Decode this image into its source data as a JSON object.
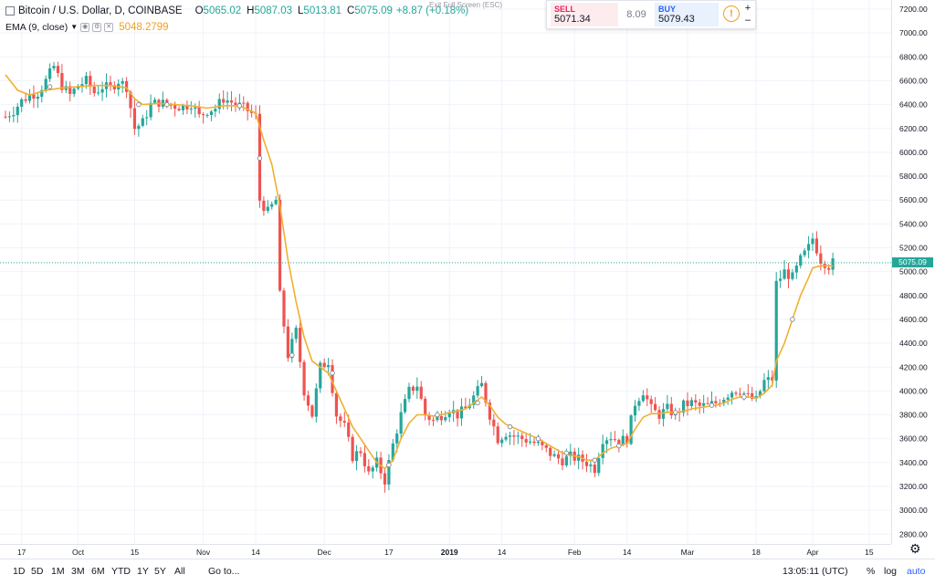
{
  "legend": {
    "symbol": "Bitcoin / U.S. Dollar, D, COINBASE",
    "open_label": "O",
    "open": "5065.02",
    "high_label": "H",
    "high": "5087.03",
    "low_label": "L",
    "low": "5013.81",
    "close_label": "C",
    "close": "5075.09",
    "change": "+8.87 (+0.18%)",
    "ema_label": "EMA (9, close)",
    "ema_value": "5048.2799"
  },
  "exit_fullscreen": "Exit Full Screen (ESC)",
  "trade": {
    "sell_label": "SELL",
    "sell_price": "5071.34",
    "spread": "8.09",
    "buy_label": "BUY",
    "buy_price": "5079.43",
    "info_icon": "!",
    "plus": "+",
    "minus": "–"
  },
  "last_price_tag": "5075.09",
  "bottom": {
    "ranges": [
      "1D",
      "5D",
      "1M",
      "3M",
      "6M",
      "YTD",
      "1Y",
      "5Y",
      "All"
    ],
    "goto": "Go to...",
    "time": "13:05:11 (UTC)",
    "percent": "%",
    "log": "log",
    "auto": "auto"
  },
  "colors": {
    "up": "#26a69a",
    "down": "#ef5350",
    "ema": "#f0b030",
    "last_price": "#26a69a"
  },
  "chart_data": {
    "type": "candlestick",
    "y_axis_ticks": [
      2800,
      3000,
      3200,
      3400,
      3600,
      3800,
      4000,
      4200,
      4400,
      4600,
      4800,
      5000,
      5200,
      5400,
      5600,
      5800,
      6000,
      6200,
      6400,
      6600,
      6800,
      7000,
      7200
    ],
    "y_tick_labels": [
      "2800.00",
      "3000.00",
      "3200.00",
      "3400.00",
      "3600.00",
      "3800.00",
      "4000.00",
      "4200.00",
      "4400.00",
      "4600.00",
      "4800.00",
      "5000.00",
      "5200.00",
      "5400.00",
      "5600.00",
      "5800.00",
      "6000.00",
      "6200.00",
      "6400.00",
      "6600.00",
      "6800.00",
      "7000.00",
      "7200.00"
    ],
    "ylim": [
      2730,
      7270
    ],
    "x_ticks": [
      {
        "label": "17",
        "day": 4
      },
      {
        "label": "Oct",
        "day": 18
      },
      {
        "label": "15",
        "day": 32
      },
      {
        "label": "Nov",
        "day": 49
      },
      {
        "label": "14",
        "day": 62
      },
      {
        "label": "Dec",
        "day": 79
      },
      {
        "label": "17",
        "day": 95
      },
      {
        "label": "2019",
        "day": 110,
        "bold": true
      },
      {
        "label": "14",
        "day": 123
      },
      {
        "label": "Feb",
        "day": 141
      },
      {
        "label": "14",
        "day": 154
      },
      {
        "label": "Mar",
        "day": 169
      },
      {
        "label": "18",
        "day": 186
      },
      {
        "label": "Apr",
        "day": 200
      },
      {
        "label": "15",
        "day": 214
      }
    ],
    "close_path": [
      [
        0,
        6300
      ],
      [
        2,
        6350
      ],
      [
        4,
        6430
      ],
      [
        6,
        6480
      ],
      [
        8,
        6500
      ],
      [
        10,
        6600
      ],
      [
        12,
        6720
      ],
      [
        14,
        6560
      ],
      [
        16,
        6480
      ],
      [
        18,
        6560
      ],
      [
        20,
        6600
      ],
      [
        22,
        6500
      ],
      [
        24,
        6550
      ],
      [
        26,
        6540
      ],
      [
        28,
        6600
      ],
      [
        30,
        6550
      ],
      [
        32,
        6200
      ],
      [
        34,
        6250
      ],
      [
        36,
        6400
      ],
      [
        38,
        6420
      ],
      [
        40,
        6400
      ],
      [
        42,
        6390
      ],
      [
        44,
        6380
      ],
      [
        46,
        6410
      ],
      [
        48,
        6300
      ],
      [
        50,
        6350
      ],
      [
        52,
        6370
      ],
      [
        54,
        6450
      ],
      [
        56,
        6420
      ],
      [
        58,
        6390
      ],
      [
        60,
        6350
      ],
      [
        62,
        6300
      ],
      [
        63,
        5600
      ],
      [
        65,
        5500
      ],
      [
        67,
        5600
      ],
      [
        68,
        4800
      ],
      [
        70,
        4300
      ],
      [
        72,
        4500
      ],
      [
        74,
        4000
      ],
      [
        76,
        3800
      ],
      [
        78,
        4200
      ],
      [
        80,
        4250
      ],
      [
        82,
        3800
      ],
      [
        84,
        3700
      ],
      [
        86,
        3450
      ],
      [
        88,
        3500
      ],
      [
        90,
        3300
      ],
      [
        92,
        3400
      ],
      [
        94,
        3250
      ],
      [
        96,
        3550
      ],
      [
        98,
        3800
      ],
      [
        100,
        4000
      ],
      [
        102,
        4050
      ],
      [
        104,
        3800
      ],
      [
        106,
        3750
      ],
      [
        108,
        3800
      ],
      [
        110,
        3850
      ],
      [
        112,
        3800
      ],
      [
        114,
        3850
      ],
      [
        116,
        3950
      ],
      [
        118,
        4050
      ],
      [
        120,
        3800
      ],
      [
        122,
        3600
      ],
      [
        124,
        3650
      ],
      [
        126,
        3620
      ],
      [
        128,
        3600
      ],
      [
        130,
        3580
      ],
      [
        132,
        3550
      ],
      [
        134,
        3500
      ],
      [
        136,
        3450
      ],
      [
        138,
        3420
      ],
      [
        140,
        3450
      ],
      [
        142,
        3430
      ],
      [
        144,
        3400
      ],
      [
        146,
        3350
      ],
      [
        148,
        3600
      ],
      [
        150,
        3620
      ],
      [
        152,
        3580
      ],
      [
        154,
        3600
      ],
      [
        156,
        3900
      ],
      [
        158,
        4000
      ],
      [
        160,
        3850
      ],
      [
        162,
        3800
      ],
      [
        164,
        3850
      ],
      [
        166,
        3800
      ],
      [
        168,
        3880
      ],
      [
        170,
        3900
      ],
      [
        172,
        3870
      ],
      [
        174,
        3880
      ],
      [
        176,
        3900
      ],
      [
        178,
        3950
      ],
      [
        180,
        4000
      ],
      [
        182,
        4010
      ],
      [
        184,
        3950
      ],
      [
        186,
        3920
      ],
      [
        188,
        4080
      ],
      [
        190,
        4100
      ],
      [
        191,
        4900
      ],
      [
        193,
        5000
      ],
      [
        195,
        4950
      ],
      [
        197,
        5100
      ],
      [
        199,
        5200
      ],
      [
        200,
        5280
      ],
      [
        202,
        5100
      ],
      [
        204,
        5050
      ],
      [
        205,
        5075
      ]
    ],
    "ema_path": [
      [
        0,
        6650
      ],
      [
        3,
        6520
      ],
      [
        6,
        6480
      ],
      [
        10,
        6520
      ],
      [
        14,
        6540
      ],
      [
        18,
        6550
      ],
      [
        22,
        6560
      ],
      [
        26,
        6560
      ],
      [
        30,
        6540
      ],
      [
        32,
        6450
      ],
      [
        34,
        6400
      ],
      [
        38,
        6410
      ],
      [
        42,
        6400
      ],
      [
        46,
        6390
      ],
      [
        50,
        6370
      ],
      [
        54,
        6390
      ],
      [
        58,
        6390
      ],
      [
        62,
        6330
      ],
      [
        64,
        6100
      ],
      [
        66,
        5900
      ],
      [
        68,
        5550
      ],
      [
        70,
        5100
      ],
      [
        72,
        4750
      ],
      [
        74,
        4450
      ],
      [
        76,
        4250
      ],
      [
        78,
        4200
      ],
      [
        80,
        4150
      ],
      [
        82,
        4000
      ],
      [
        84,
        3850
      ],
      [
        86,
        3700
      ],
      [
        88,
        3600
      ],
      [
        90,
        3500
      ],
      [
        92,
        3400
      ],
      [
        94,
        3350
      ],
      [
        96,
        3420
      ],
      [
        98,
        3600
      ],
      [
        100,
        3730
      ],
      [
        102,
        3800
      ],
      [
        104,
        3800
      ],
      [
        106,
        3790
      ],
      [
        108,
        3800
      ],
      [
        110,
        3820
      ],
      [
        112,
        3830
      ],
      [
        114,
        3850
      ],
      [
        116,
        3900
      ],
      [
        118,
        3950
      ],
      [
        120,
        3880
      ],
      [
        122,
        3780
      ],
      [
        124,
        3720
      ],
      [
        126,
        3690
      ],
      [
        128,
        3660
      ],
      [
        130,
        3630
      ],
      [
        132,
        3600
      ],
      [
        134,
        3560
      ],
      [
        136,
        3520
      ],
      [
        138,
        3480
      ],
      [
        140,
        3460
      ],
      [
        142,
        3450
      ],
      [
        144,
        3420
      ],
      [
        146,
        3420
      ],
      [
        148,
        3480
      ],
      [
        150,
        3520
      ],
      [
        152,
        3540
      ],
      [
        154,
        3560
      ],
      [
        156,
        3680
      ],
      [
        158,
        3780
      ],
      [
        160,
        3810
      ],
      [
        162,
        3810
      ],
      [
        164,
        3820
      ],
      [
        166,
        3820
      ],
      [
        168,
        3830
      ],
      [
        170,
        3850
      ],
      [
        172,
        3860
      ],
      [
        174,
        3870
      ],
      [
        176,
        3880
      ],
      [
        178,
        3900
      ],
      [
        180,
        3930
      ],
      [
        182,
        3950
      ],
      [
        184,
        3950
      ],
      [
        186,
        3940
      ],
      [
        188,
        3980
      ],
      [
        190,
        4050
      ],
      [
        191,
        4250
      ],
      [
        193,
        4400
      ],
      [
        195,
        4600
      ],
      [
        197,
        4800
      ],
      [
        199,
        4950
      ],
      [
        200,
        5030
      ],
      [
        202,
        5050
      ],
      [
        204,
        5050
      ],
      [
        205,
        5048
      ]
    ],
    "ema_markers": [
      [
        11,
        6550
      ],
      [
        33,
        6400
      ],
      [
        40,
        6400
      ],
      [
        58,
        6390
      ],
      [
        63,
        5950
      ],
      [
        71,
        4300
      ],
      [
        81,
        4150
      ],
      [
        95,
        3380
      ],
      [
        107,
        3800
      ],
      [
        117,
        3900
      ],
      [
        125,
        3700
      ],
      [
        132,
        3600
      ],
      [
        139,
        3480
      ],
      [
        146,
        3420
      ],
      [
        152,
        3540
      ],
      [
        166,
        3820
      ],
      [
        175,
        3880
      ],
      [
        183,
        3950
      ],
      [
        195,
        4600
      ]
    ],
    "last_price": 5075.09
  }
}
